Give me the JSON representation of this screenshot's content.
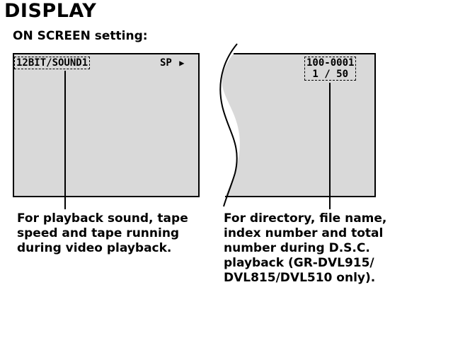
{
  "page": {
    "heading": "DISPLAY",
    "subheading": "ON SCREEN setting:"
  },
  "left_screen": {
    "audio_mode": "12BIT/SOUND1",
    "tape_speed": "SP",
    "play_symbol": "▶",
    "caption_lines": [
      "For playback sound, tape",
      "speed and tape running",
      "during video playback."
    ]
  },
  "right_screen": {
    "file_name": "100-0001",
    "index_total": "1 / 50",
    "caption_lines": [
      "For directory, file name,",
      "index number and total",
      "number during D.S.C.",
      "playback (GR-DVL915/",
      "DVL815/DVL510 only)."
    ]
  },
  "colors": {
    "screen_fill": "#d9d9d9",
    "line": "#000000"
  }
}
